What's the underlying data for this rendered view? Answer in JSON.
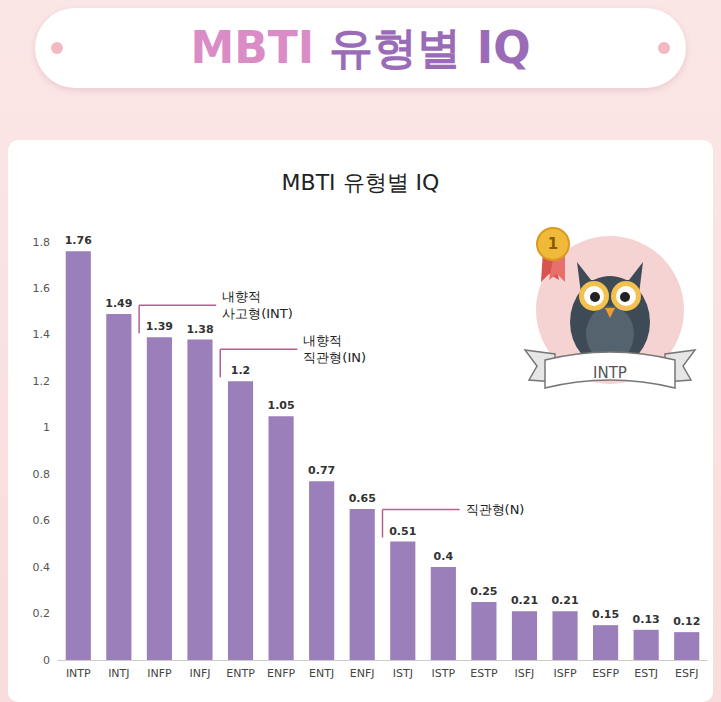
{
  "banner_title": "MBTI 유형별 IQ",
  "badge": {
    "rank": 1,
    "label": "INTP"
  },
  "chart_data": {
    "type": "bar",
    "title": "MBTI 유형별 IQ",
    "categories": [
      "INTP",
      "INTJ",
      "INFP",
      "INFJ",
      "ENTP",
      "ENFP",
      "ENTJ",
      "ENFJ",
      "ISTJ",
      "ISTP",
      "ESTP",
      "ISFJ",
      "ISFP",
      "ESFP",
      "ESTJ",
      "ESFJ"
    ],
    "values": [
      1.76,
      1.49,
      1.39,
      1.38,
      1.2,
      1.05,
      0.77,
      0.65,
      0.51,
      0.4,
      0.25,
      0.21,
      0.21,
      0.15,
      0.13,
      0.12
    ],
    "color": "#9b7fba",
    "ylim": [
      0,
      1.8
    ],
    "yticks": [
      0,
      0.2,
      0.4,
      0.6,
      0.8,
      1,
      1.2,
      1.4,
      1.6,
      1.8
    ],
    "grid": false,
    "data_labels": true,
    "annotations": [
      "내향적\n사고형(INT)",
      "내향적\n직관형(IN)",
      "직관형(N)"
    ]
  }
}
